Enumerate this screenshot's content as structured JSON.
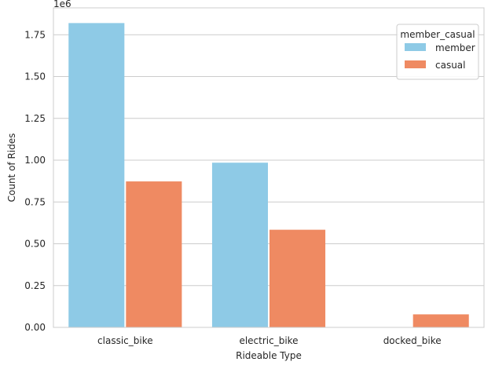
{
  "chart_data": {
    "type": "bar",
    "categories": [
      "classic_bike",
      "electric_bike",
      "docked_bike"
    ],
    "series": [
      {
        "name": "member",
        "values": [
          1820000,
          985000,
          0
        ],
        "color": "#8ecae6"
      },
      {
        "name": "casual",
        "values": [
          873000,
          584000,
          78000
        ],
        "color": "#ef8a62"
      }
    ],
    "xlabel": "Rideable Type",
    "ylabel": "Count of Rides",
    "y_offset_text": "1e6",
    "ylim": [
      0,
      1911000
    ],
    "yticks": [
      0,
      250000,
      500000,
      750000,
      1000000,
      1250000,
      1500000,
      1750000
    ],
    "ytick_labels": [
      "0.00",
      "0.25",
      "0.50",
      "0.75",
      "1.00",
      "1.25",
      "1.50",
      "1.75"
    ],
    "legend": {
      "title": "member_casual",
      "placement": "top-right"
    },
    "grid": "y"
  }
}
